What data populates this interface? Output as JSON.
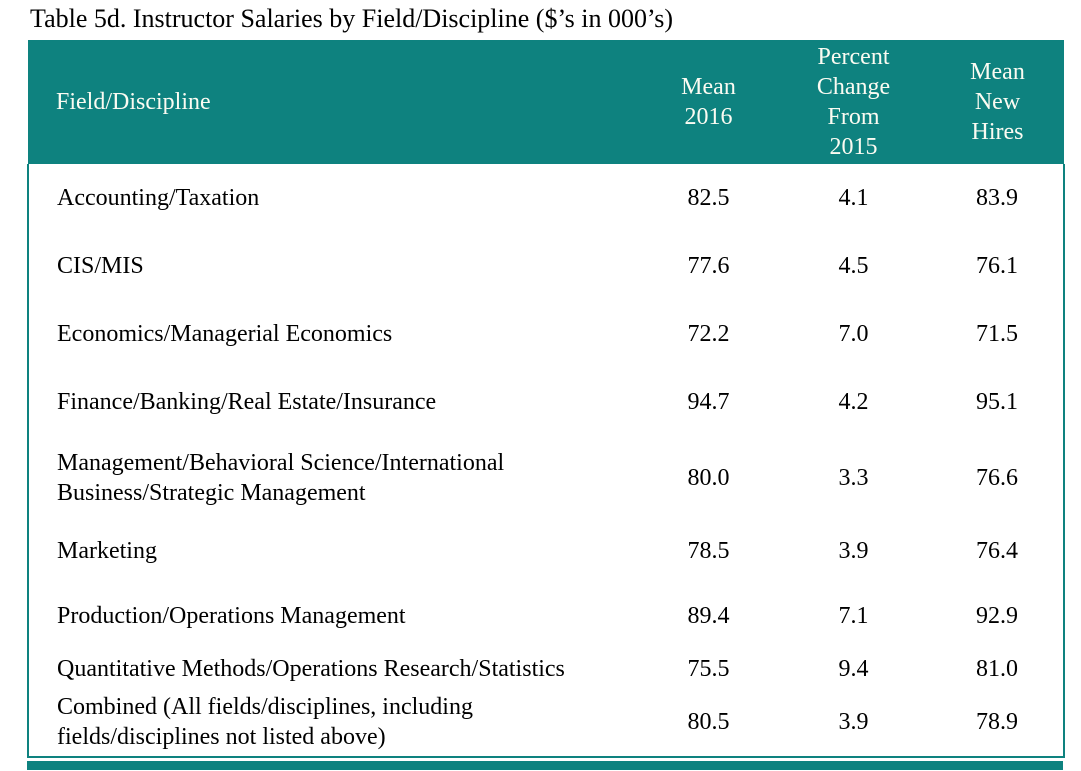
{
  "title": "Table 5d. Instructor Salaries by Field/Discipline ($’s in 000’s)",
  "colors": {
    "accent_teal": "#0e827f",
    "header_text": "#fbfbf2",
    "body_text": "#000000",
    "background": "#ffffff"
  },
  "table": {
    "columns": {
      "field": "Field/Discipline",
      "mean_2016": "Mean\n2016",
      "percent_change": "Percent\nChange\nFrom\n2015",
      "mean_new_hires": "Mean\nNew\nHires"
    },
    "rows": [
      {
        "field": "Accounting/Taxation",
        "mean_2016": "82.5",
        "percent_change": "4.1",
        "mean_new_hires": "83.9"
      },
      {
        "field": "CIS/MIS",
        "mean_2016": "77.6",
        "percent_change": "4.5",
        "mean_new_hires": "76.1"
      },
      {
        "field": "Economics/Managerial Economics",
        "mean_2016": "72.2",
        "percent_change": "7.0",
        "mean_new_hires": "71.5"
      },
      {
        "field": "Finance/Banking/Real Estate/Insurance",
        "mean_2016": "94.7",
        "percent_change": "4.2",
        "mean_new_hires": "95.1"
      },
      {
        "field": "Management/Behavioral Science/International Business/Strategic Management",
        "mean_2016": "80.0",
        "percent_change": "3.3",
        "mean_new_hires": "76.6"
      },
      {
        "field": "Marketing",
        "mean_2016": "78.5",
        "percent_change": "3.9",
        "mean_new_hires": "76.4"
      },
      {
        "field": "Production/Operations Management",
        "mean_2016": "89.4",
        "percent_change": "7.1",
        "mean_new_hires": "92.9"
      },
      {
        "field": "Quantitative Methods/Operations Research/Statistics",
        "mean_2016": "75.5",
        "percent_change": "9.4",
        "mean_new_hires": "81.0"
      },
      {
        "field": "Combined (All fields/disciplines, including fields/disciplines not listed above)",
        "mean_2016": "80.5",
        "percent_change": "3.9",
        "mean_new_hires": "78.9"
      }
    ]
  },
  "chart_data": {
    "type": "table",
    "title": "Table 5d. Instructor Salaries by Field/Discipline ($’s in 000’s)",
    "categories": [
      "Field/Discipline",
      "Mean 2016",
      "Percent Change From 2015",
      "Mean New Hires"
    ],
    "series": [
      {
        "name": "Mean 2016",
        "values": [
          82.5,
          77.6,
          72.2,
          94.7,
          80.0,
          78.5,
          89.4,
          75.5,
          80.5
        ]
      },
      {
        "name": "Percent Change From 2015",
        "values": [
          4.1,
          4.5,
          7.0,
          4.2,
          3.3,
          3.9,
          7.1,
          9.4,
          3.9
        ]
      },
      {
        "name": "Mean New Hires",
        "values": [
          83.9,
          76.1,
          71.5,
          95.1,
          76.6,
          76.4,
          92.9,
          81.0,
          78.9
        ]
      }
    ]
  }
}
